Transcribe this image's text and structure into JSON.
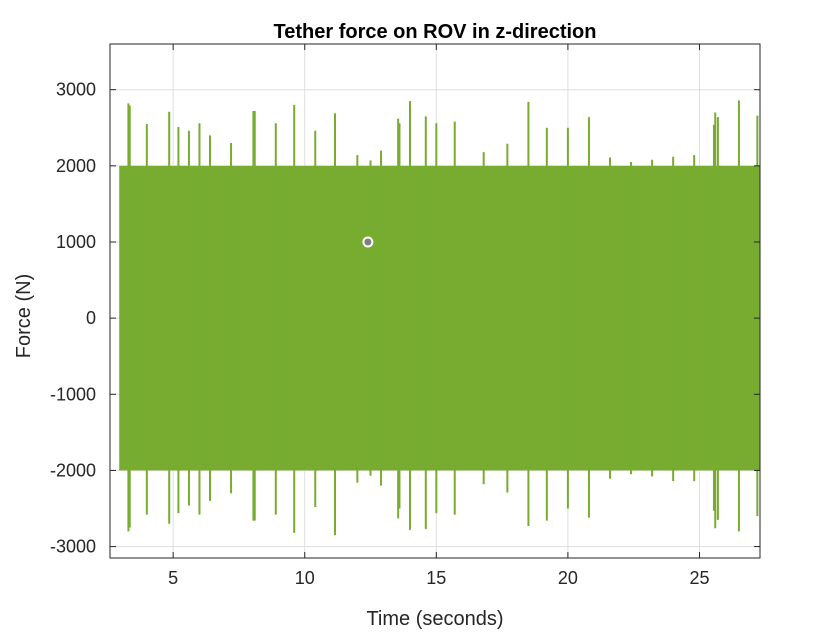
{
  "chart_data": {
    "type": "line",
    "title": "Tether force on ROV in z-direction",
    "xlabel": "Time (seconds)",
    "ylabel": "Force (N)",
    "xlim": [
      2.6,
      27.3
    ],
    "ylim": [
      -3150,
      3600
    ],
    "xticks": [
      5,
      10,
      15,
      20,
      25
    ],
    "yticks": [
      -3000,
      -2000,
      -1000,
      0,
      1000,
      2000,
      3000
    ],
    "grid": true,
    "line_color": "#77AC30",
    "marker": {
      "x": 12.4,
      "y": 1000,
      "shape": "circle"
    },
    "band": {
      "x_start": 2.95,
      "x_end": 27.3,
      "lower": -2000,
      "upper": 2000
    },
    "spikes": [
      {
        "x": 3.3,
        "up": 2820,
        "down": -2800
      },
      {
        "x": 3.35,
        "up": 2790,
        "down": -2750
      },
      {
        "x": 4.0,
        "up": 2550,
        "down": -2580
      },
      {
        "x": 4.85,
        "up": 2710,
        "down": -2700
      },
      {
        "x": 5.2,
        "up": 2510,
        "down": -2560
      },
      {
        "x": 5.6,
        "up": 2460,
        "down": -2460
      },
      {
        "x": 6.0,
        "up": 2560,
        "down": -2580
      },
      {
        "x": 6.4,
        "up": 2400,
        "down": -2400
      },
      {
        "x": 7.2,
        "up": 2300,
        "down": -2300
      },
      {
        "x": 8.05,
        "up": 2720,
        "down": -2660
      },
      {
        "x": 8.1,
        "up": 2720,
        "down": -2660
      },
      {
        "x": 8.9,
        "up": 2560,
        "down": -2580
      },
      {
        "x": 9.6,
        "up": 2800,
        "down": -2820
      },
      {
        "x": 10.4,
        "up": 2460,
        "down": -2480
      },
      {
        "x": 11.15,
        "up": 2690,
        "down": -2850
      },
      {
        "x": 12.0,
        "up": 2140,
        "down": -2160
      },
      {
        "x": 12.5,
        "up": 2070,
        "down": -2070
      },
      {
        "x": 12.9,
        "up": 2200,
        "down": -2200
      },
      {
        "x": 13.55,
        "up": 2620,
        "down": -2630
      },
      {
        "x": 13.6,
        "up": 2560,
        "down": -2500
      },
      {
        "x": 14.0,
        "up": 2850,
        "down": -2780
      },
      {
        "x": 14.6,
        "up": 2650,
        "down": -2770
      },
      {
        "x": 15.0,
        "up": 2560,
        "down": -2560
      },
      {
        "x": 15.7,
        "up": 2580,
        "down": -2580
      },
      {
        "x": 16.8,
        "up": 2180,
        "down": -2180
      },
      {
        "x": 17.7,
        "up": 2290,
        "down": -2290
      },
      {
        "x": 18.5,
        "up": 2840,
        "down": -2730
      },
      {
        "x": 19.2,
        "up": 2500,
        "down": -2660
      },
      {
        "x": 20.0,
        "up": 2500,
        "down": -2500
      },
      {
        "x": 20.8,
        "up": 2640,
        "down": -2620
      },
      {
        "x": 21.6,
        "up": 2110,
        "down": -2110
      },
      {
        "x": 22.4,
        "up": 2050,
        "down": -2050
      },
      {
        "x": 23.2,
        "up": 2080,
        "down": -2080
      },
      {
        "x": 24.0,
        "up": 2120,
        "down": -2140
      },
      {
        "x": 24.8,
        "up": 2140,
        "down": -2140
      },
      {
        "x": 25.55,
        "up": 2540,
        "down": -2530
      },
      {
        "x": 25.6,
        "up": 2700,
        "down": -2760
      },
      {
        "x": 25.7,
        "up": 2640,
        "down": -2650
      },
      {
        "x": 26.5,
        "up": 2860,
        "down": -2800
      },
      {
        "x": 27.2,
        "up": 2660,
        "down": -2600
      }
    ]
  }
}
